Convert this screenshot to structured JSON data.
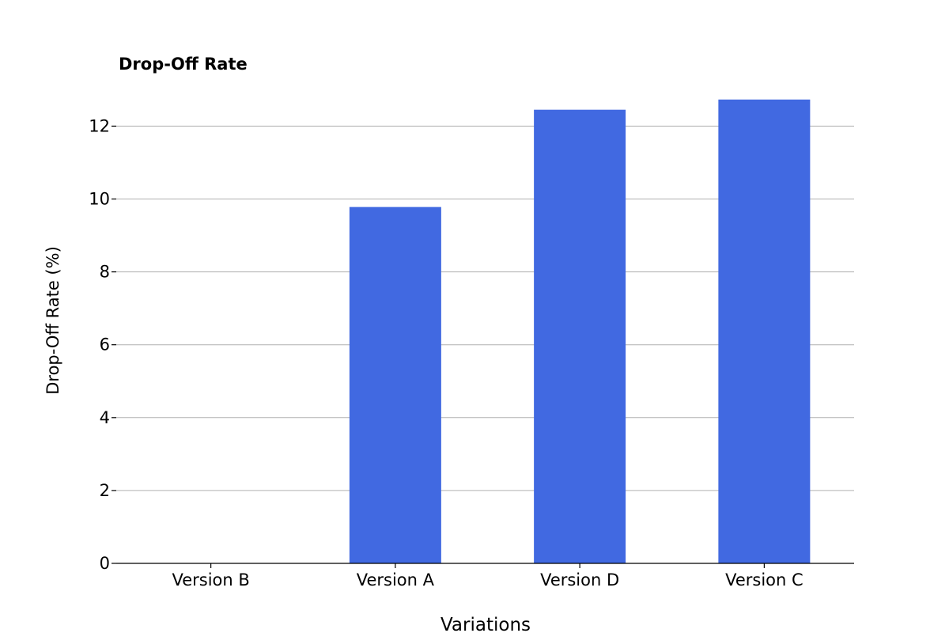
{
  "chart_data": {
    "type": "bar",
    "title": "Drop-Off Rate",
    "xlabel": "Variations",
    "ylabel": "Drop-Off Rate (%)",
    "categories": [
      "Version B",
      "Version A",
      "Version D",
      "Version C"
    ],
    "values": [
      0,
      9.78,
      12.45,
      12.73
    ],
    "ylim": [
      0,
      13
    ],
    "yticks": [
      0,
      2,
      4,
      6,
      8,
      10,
      12
    ],
    "grid": true,
    "grid_axis": "y",
    "bar_color": "#4169e1",
    "grid_color": "#b0b0b0",
    "legend": false
  }
}
